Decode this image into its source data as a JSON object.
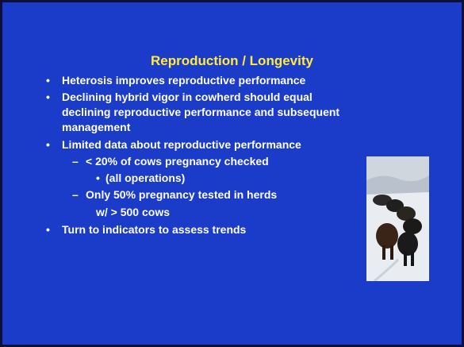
{
  "title": "Reproduction / Longevity",
  "bullets": [
    {
      "level": 1,
      "marker": "•",
      "lines": [
        "Heterosis improves reproductive performance"
      ]
    },
    {
      "level": 1,
      "marker": "•",
      "lines": [
        "Declining hybrid vigor in cowherd should equal",
        "declining reproductive performance and subsequent",
        "management"
      ]
    },
    {
      "level": 1,
      "marker": "•",
      "lines": [
        "Limited data about reproductive performance"
      ]
    },
    {
      "level": 2,
      "marker": "–",
      "lines": [
        "< 20% of cows pregnancy checked"
      ]
    },
    {
      "level": 3,
      "marker": "•",
      "lines": [
        "(all operations)"
      ]
    },
    {
      "level": 2,
      "marker": "–",
      "lines": [
        "Only 50% pregnancy tested in herds",
        "w/ > 500 cows"
      ]
    },
    {
      "level": 1,
      "marker": "•",
      "lines": [
        "Turn to indicators to assess trends"
      ]
    }
  ]
}
